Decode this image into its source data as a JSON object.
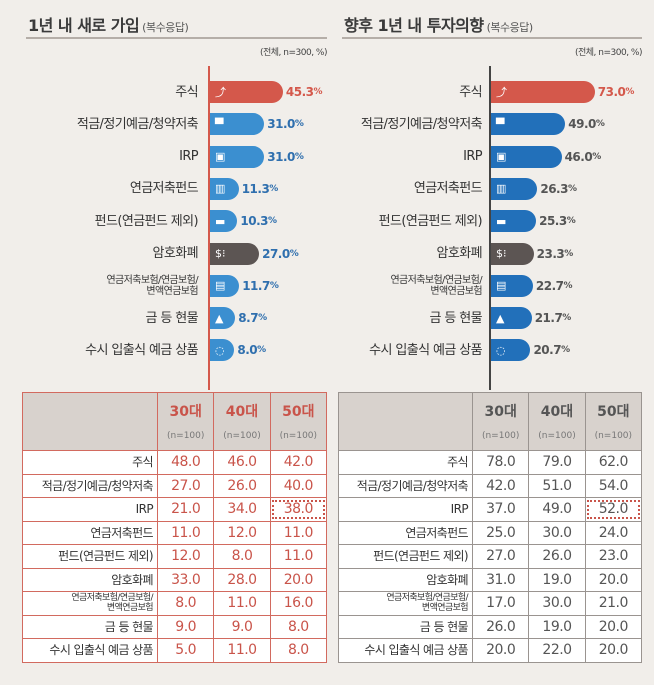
{
  "chart_data": [
    {
      "type": "bar",
      "orientation": "horizontal",
      "title": "1년 내 새로 가입",
      "subtitle": "(복수응답)",
      "note": "(전체, n=300, %)",
      "categories": [
        "주식",
        "적금/정기예금/청약저축",
        "IRP",
        "연금저축펀드",
        "펀드(연금펀드 제외)",
        "암호화폐",
        "연금저축보험/연금보험/변액연금보험",
        "금 등 현물",
        "수시 입출식 예금 상품"
      ],
      "values": [
        45.3,
        31.0,
        31.0,
        11.3,
        10.3,
        27.0,
        11.7,
        8.7,
        8.0
      ],
      "value_labels": [
        "45.3",
        "31.0",
        "31.0",
        "11.3",
        "10.3",
        "27.0",
        "11.7",
        "8.7",
        "8.0"
      ],
      "icons": [
        "chart-icon",
        "atm-icon",
        "briefcase-icon",
        "fund-chart-icon",
        "folder-icon",
        "crypto-icon",
        "insurance-book-icon",
        "gold-bars-icon",
        "piggy-bank-icon"
      ],
      "bar_colors": [
        "#d4584b",
        "#3b8fd0",
        "#3b8fd0",
        "#3b8fd0",
        "#3b8fd0",
        "#5c5553",
        "#3b8fd0",
        "#3b8fd0",
        "#3b8fd0"
      ],
      "value_color": "#2f6fae",
      "highlight_value_color": "#d4584b",
      "table": {
        "columns": [
          {
            "label": "30대",
            "n": "(n=100)"
          },
          {
            "label": "40대",
            "n": "(n=100)"
          },
          {
            "label": "50대",
            "n": "(n=100)"
          }
        ],
        "rows": [
          [
            "48.0",
            "46.0",
            "42.0"
          ],
          [
            "27.0",
            "26.0",
            "40.0"
          ],
          [
            "21.0",
            "34.0",
            "38.0"
          ],
          [
            "11.0",
            "12.0",
            "11.0"
          ],
          [
            "12.0",
            "8.0",
            "11.0"
          ],
          [
            "33.0",
            "28.0",
            "20.0"
          ],
          [
            "8.0",
            "11.0",
            "16.0"
          ],
          [
            "9.0",
            "9.0",
            "8.0"
          ],
          [
            "5.0",
            "11.0",
            "8.0"
          ]
        ],
        "highlight": "IRP / 50대",
        "accent": "#c9544a"
      }
    },
    {
      "type": "bar",
      "orientation": "horizontal",
      "title": "향후 1년 내 투자의향",
      "subtitle": "(복수응답)",
      "note": "(전체, n=300, %)",
      "categories": [
        "주식",
        "적금/정기예금/청약저축",
        "IRP",
        "연금저축펀드",
        "펀드(연금펀드 제외)",
        "암호화폐",
        "연금저축보험/연금보험/변액연금보험",
        "금 등 현물",
        "수시 입출식 예금 상품"
      ],
      "values": [
        73.0,
        49.0,
        46.0,
        26.3,
        25.3,
        23.3,
        22.7,
        21.7,
        20.7
      ],
      "value_labels": [
        "73.0",
        "49.0",
        "46.0",
        "26.3",
        "25.3",
        "23.3",
        "22.7",
        "21.7",
        "20.7"
      ],
      "icons": [
        "chart-icon",
        "atm-icon",
        "briefcase-icon",
        "fund-chart-icon",
        "folder-icon",
        "crypto-icon",
        "insurance-book-icon",
        "gold-bars-icon",
        "piggy-bank-icon"
      ],
      "bar_colors": [
        "#d4584b",
        "#2270ba",
        "#2270ba",
        "#2270ba",
        "#2270ba",
        "#5c5553",
        "#2270ba",
        "#2270ba",
        "#2270ba"
      ],
      "value_color": "#555555",
      "highlight_value_color": "#d4584b",
      "table": {
        "columns": [
          {
            "label": "30대",
            "n": "(n=100)"
          },
          {
            "label": "40대",
            "n": "(n=100)"
          },
          {
            "label": "50대",
            "n": "(n=100)"
          }
        ],
        "rows": [
          [
            "78.0",
            "79.0",
            "62.0"
          ],
          [
            "42.0",
            "51.0",
            "54.0"
          ],
          [
            "37.0",
            "49.0",
            "52.0"
          ],
          [
            "25.0",
            "30.0",
            "24.0"
          ],
          [
            "27.0",
            "26.0",
            "23.0"
          ],
          [
            "31.0",
            "19.0",
            "20.0"
          ],
          [
            "17.0",
            "30.0",
            "21.0"
          ],
          [
            "26.0",
            "19.0",
            "20.0"
          ],
          [
            "20.0",
            "22.0",
            "20.0"
          ]
        ],
        "highlight": "IRP / 50대",
        "accent": "#555555"
      }
    }
  ],
  "row_labels_display": [
    "주식",
    "적금/정기예금/청약저축",
    "IRP",
    "연금저축펀드",
    "펀드(연금펀드 제외)",
    "암호화폐",
    "연금저축보험/연금보험/\n변액연금보험",
    "금 등 현물",
    "수시 입출식 예금 상품"
  ],
  "percent_sign": "%"
}
